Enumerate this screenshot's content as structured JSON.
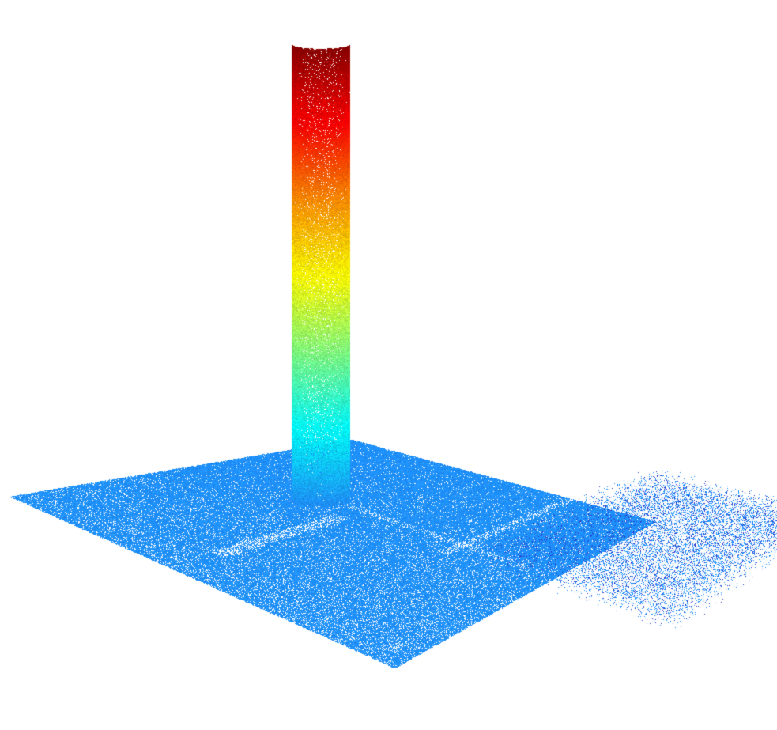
{
  "scene": {
    "type": "point-cloud",
    "background": "#ffffff",
    "colormap": "jet",
    "colormap_stops": [
      "#8b0000",
      "#ff0000",
      "#ff8c00",
      "#ffff00",
      "#7fff7f",
      "#00ffff",
      "#1e90ff"
    ],
    "ground_color": "#1e90ff",
    "objects": [
      {
        "name": "vertical-pole",
        "shape": "cylinder",
        "coloring": "height"
      },
      {
        "name": "ground-plane",
        "shape": "plane",
        "coloring": "flat"
      }
    ]
  }
}
